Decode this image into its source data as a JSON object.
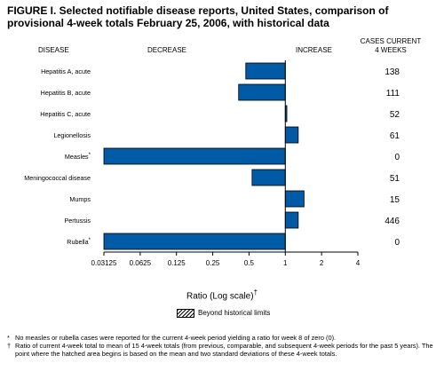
{
  "figure": {
    "title": "FIGURE I. Selected notifiable disease reports, United States, comparison of provisional 4-week totals February 25, 2006, with historical data"
  },
  "headers": {
    "disease": "DISEASE",
    "decrease": "DECREASE",
    "increase": "INCREASE",
    "cases_line1": "CASES CURRENT",
    "cases_line2": "4 WEEKS"
  },
  "xaxis_title": "Ratio (Log scale)",
  "xaxis_title_mark": "†",
  "legend": {
    "label": "Beyond historical limits"
  },
  "footnotes": [
    {
      "mark": "*",
      "text": "No measles or rubella cases were reported for the current 4-week period yielding a ratio for week 8 of zero (0)."
    },
    {
      "mark": "†",
      "text": "Ratio of current 4-week total to mean of 15 4-week totals (from previous, comparable, and subsequent 4-week periods for the past 5 years). The point where the hatched area begins is based on the mean and two standard deviations of these 4-week totals."
    }
  ],
  "colors": {
    "bar": "#005aa6",
    "bar_stroke": "#000000"
  },
  "chart_data": {
    "type": "bar",
    "orientation": "horizontal",
    "scale": "log2",
    "xlim": [
      0.03125,
      4
    ],
    "xticks": [
      "0.03125",
      "0.0625",
      "0.125",
      "0.25",
      "0.5",
      "1",
      "2",
      "4"
    ],
    "xtick_values": [
      0.03125,
      0.0625,
      0.125,
      0.25,
      0.5,
      1,
      2,
      4
    ],
    "categories": [
      "Hepatitis A, acute",
      "Hepatitis B, acute",
      "Hepatitis C, acute",
      "Legionellosis",
      "Measles",
      "Meningococcal disease",
      "Mumps",
      "Pertussis",
      "Rubella"
    ],
    "category_marks": [
      "",
      "",
      "",
      "",
      "*",
      "",
      "",
      "",
      "*"
    ],
    "ratios": [
      0.47,
      0.41,
      1.03,
      1.28,
      0.03125,
      0.53,
      1.43,
      1.28,
      0.03125
    ],
    "cases": [
      138,
      111,
      52,
      61,
      0,
      51,
      15,
      446,
      0
    ]
  }
}
